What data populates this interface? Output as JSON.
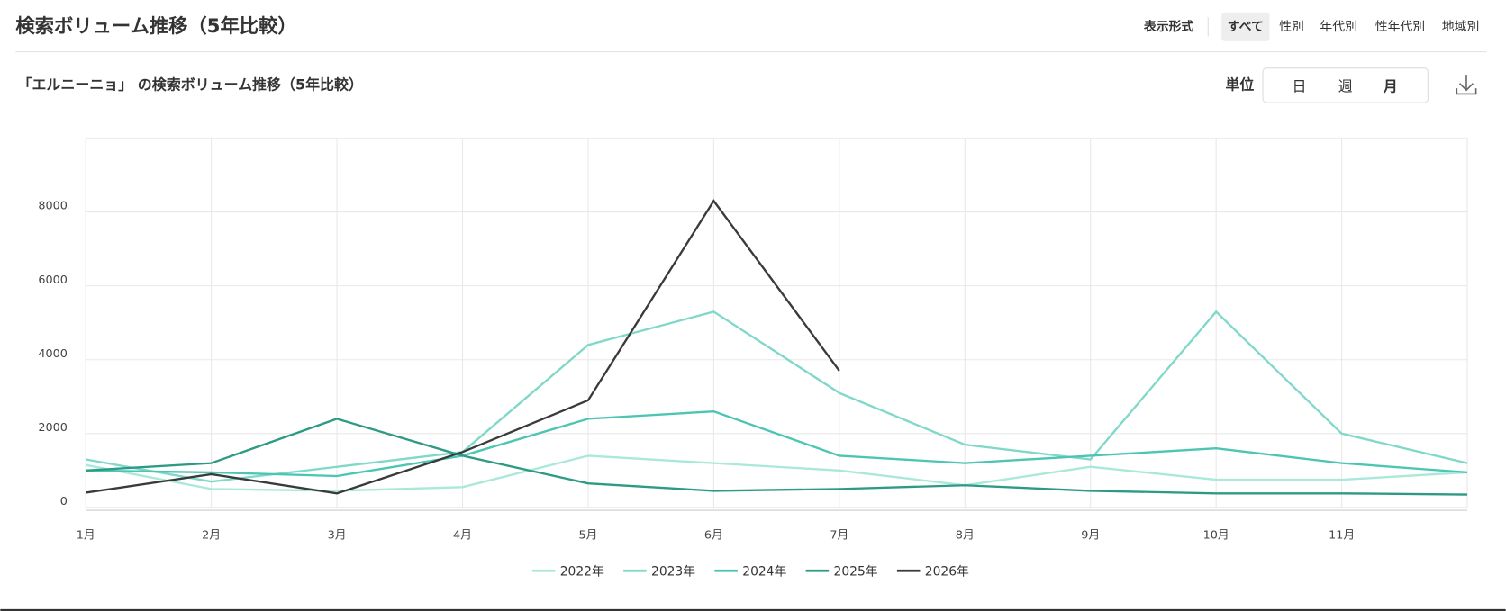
{
  "header": {
    "title": "検索ボリューム推移（5年比較）",
    "display_label": "表示形式",
    "tabs": [
      "すべて",
      "性別",
      "年代別",
      "性年代別",
      "地域別"
    ]
  },
  "panel": {
    "unit_label": "単位",
    "units": [
      "日",
      "週",
      "月"
    ]
  },
  "chart_data": {
    "type": "line",
    "title": "「エルニーニョ」 の検索ボリューム推移（5年比較）",
    "categories": [
      "1月",
      "2月",
      "3月",
      "4月",
      "5月",
      "6月",
      "7月",
      "8月",
      "9月",
      "10月",
      "11月",
      null
    ],
    "series": [
      {
        "name": "2022年",
        "color": "#aae8da",
        "values": [
          1150,
          500,
          450,
          550,
          1400,
          1200,
          1000,
          600,
          1100,
          750,
          750,
          950
        ]
      },
      {
        "name": "2023年",
        "color": "#7fd8c8",
        "values": [
          1300,
          700,
          1100,
          1500,
          4400,
          5300,
          3100,
          1700,
          1300,
          5300,
          2000,
          1200
        ]
      },
      {
        "name": "2024年",
        "color": "#4cc5b3",
        "values": [
          1000,
          950,
          850,
          1400,
          2400,
          2600,
          1400,
          1200,
          1400,
          1600,
          1200,
          950
        ]
      },
      {
        "name": "2025年",
        "color": "#2e9a84",
        "values": [
          1000,
          1200,
          2400,
          1400,
          650,
          450,
          500,
          600,
          450,
          380,
          380,
          350
        ]
      },
      {
        "name": "2026年",
        "color": "#3a3a3a",
        "values": [
          400,
          900,
          380,
          1500,
          2900,
          8300,
          3700,
          null,
          null,
          null,
          null,
          null
        ]
      }
    ],
    "ylim": [
      0,
      10000
    ],
    "yticks": [
      0,
      2000,
      4000,
      6000,
      8000
    ],
    "grid": true,
    "legend": "bottom"
  }
}
